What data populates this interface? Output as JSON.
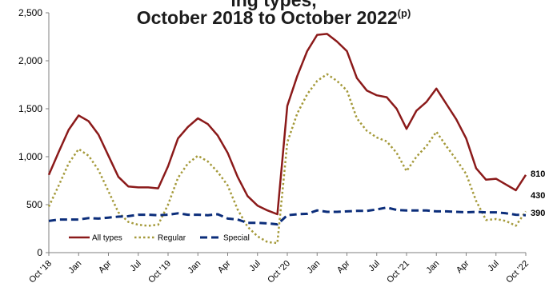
{
  "chart_data": {
    "type": "line",
    "title_line1": "ing types,",
    "title_line2": "October 2018 to October 2022",
    "title_sup": "(p)",
    "ylim": [
      0,
      2500
    ],
    "yticks": [
      "0",
      "500",
      "1,000",
      "1,500",
      "2,000",
      "2,500"
    ],
    "ytick_values": [
      0,
      500,
      1000,
      1500,
      2000,
      2500
    ],
    "x_count": 49,
    "xticks": [
      {
        "i": 0,
        "label": "Oct '18"
      },
      {
        "i": 3,
        "label": "Jan"
      },
      {
        "i": 6,
        "label": "Apr"
      },
      {
        "i": 9,
        "label": "Jul"
      },
      {
        "i": 12,
        "label": "Oct '19"
      },
      {
        "i": 15,
        "label": "Jan"
      },
      {
        "i": 18,
        "label": "Apr"
      },
      {
        "i": 21,
        "label": "Jul"
      },
      {
        "i": 24,
        "label": "Oct '20"
      },
      {
        "i": 27,
        "label": "Jan"
      },
      {
        "i": 30,
        "label": "Apr"
      },
      {
        "i": 33,
        "label": "Jul"
      },
      {
        "i": 36,
        "label": "Oct '21"
      },
      {
        "i": 39,
        "label": "Jan"
      },
      {
        "i": 42,
        "label": "Apr"
      },
      {
        "i": 45,
        "label": "Jul"
      },
      {
        "i": 48,
        "label": "Oct '22"
      }
    ],
    "series": [
      {
        "name": "All types",
        "color": "#8b1a1a",
        "style": "solid",
        "end_label": "810",
        "values": [
          810,
          1050,
          1280,
          1430,
          1370,
          1230,
          1010,
          790,
          690,
          680,
          680,
          670,
          900,
          1190,
          1310,
          1400,
          1340,
          1220,
          1040,
          790,
          590,
          490,
          440,
          400,
          1530,
          1840,
          2100,
          2270,
          2280,
          2200,
          2100,
          1820,
          1690,
          1640,
          1620,
          1500,
          1290,
          1480,
          1570,
          1710,
          1550,
          1390,
          1190,
          880,
          760,
          770,
          710,
          650,
          810
        ]
      },
      {
        "name": "Regular",
        "color": "#a59a3b",
        "style": "dotted",
        "end_label": "430",
        "values": [
          480,
          700,
          930,
          1080,
          1010,
          860,
          640,
          420,
          320,
          290,
          280,
          290,
          500,
          780,
          930,
          1010,
          950,
          840,
          700,
          450,
          270,
          170,
          110,
          100,
          1150,
          1450,
          1650,
          1790,
          1860,
          1790,
          1690,
          1400,
          1270,
          1200,
          1160,
          1040,
          850,
          1000,
          1110,
          1260,
          1110,
          970,
          820,
          540,
          340,
          350,
          330,
          280,
          430
        ]
      },
      {
        "name": "Special",
        "color": "#0b2d7a",
        "style": "dashed",
        "end_label": "390",
        "values": [
          330,
          345,
          345,
          345,
          360,
          355,
          365,
          375,
          380,
          395,
          395,
          390,
          395,
          410,
          395,
          395,
          390,
          400,
          355,
          345,
          310,
          310,
          305,
          295,
          390,
          400,
          405,
          440,
          425,
          425,
          430,
          435,
          435,
          450,
          470,
          445,
          440,
          440,
          440,
          430,
          430,
          425,
          420,
          425,
          420,
          420,
          410,
          395,
          390
        ]
      }
    ],
    "legend_position": "bottom-left"
  }
}
